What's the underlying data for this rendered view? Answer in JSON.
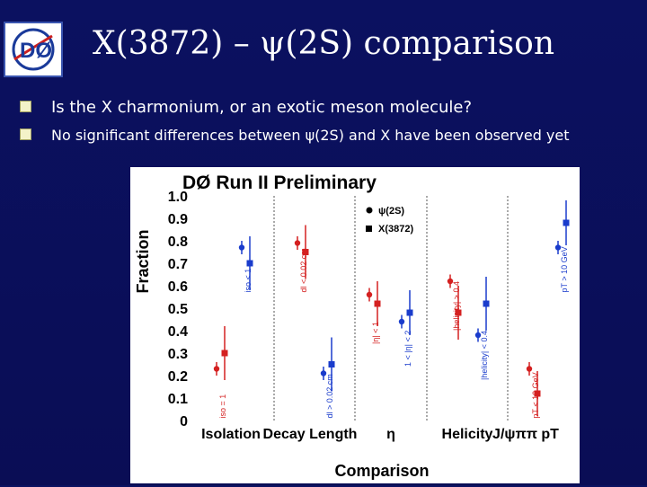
{
  "slide": {
    "title": "X(3872) – ψ(2S) comparison",
    "logo_text": "DØ",
    "bullets": [
      "Is the X charmonium, or an exotic meson molecule?",
      "No significant differences between ψ(2S) and X have been observed yet"
    ]
  },
  "chart_data": {
    "type": "scatter",
    "title": "DØ Run II Preliminary",
    "ylabel": "Fraction",
    "xlabel": "Comparison",
    "ylim": [
      0,
      1.0
    ],
    "yticks": [
      "1.0",
      "0.9",
      "0.8",
      "0.7",
      "0.6",
      "0.5",
      "0.4",
      "0.3",
      "0.2",
      "0.1",
      "0"
    ],
    "groups": [
      "Isolation",
      "Decay Length",
      "η",
      "Helicity",
      "J/ψππ pT"
    ],
    "legend": [
      "ψ(2S)",
      "X(3872)"
    ],
    "colors": {
      "Isolation": "#d42020",
      "Decay Length": "#d42020",
      "eta": "#d42020",
      "helicity": "#d42020",
      "pt": "#d42020",
      "blue": "#1a3ccc",
      "red": "#d42020"
    },
    "series": [
      {
        "name": "ψ(2S)",
        "points": [
          {
            "group": "Isolation",
            "cut": "iso = 1",
            "value": 0.23,
            "err": 0.03,
            "color": "red"
          },
          {
            "group": "Isolation",
            "cut": "iso < 1",
            "value": 0.77,
            "err": 0.03,
            "color": "blue"
          },
          {
            "group": "Decay Length",
            "cut": "dl < 0.02 cm",
            "value": 0.79,
            "err": 0.03,
            "color": "red"
          },
          {
            "group": "Decay Length",
            "cut": "dl > 0.02 cm",
            "value": 0.21,
            "err": 0.03,
            "color": "blue"
          },
          {
            "group": "η",
            "cut": "|η| < 1",
            "value": 0.56,
            "err": 0.03,
            "color": "red"
          },
          {
            "group": "η",
            "cut": "1 < |η| < 2",
            "value": 0.44,
            "err": 0.03,
            "color": "blue"
          },
          {
            "group": "Helicity",
            "cut": "|helicity| > 0.4",
            "value": 0.62,
            "err": 0.03,
            "color": "red"
          },
          {
            "group": "Helicity",
            "cut": "|helicity| < 0.4",
            "value": 0.38,
            "err": 0.03,
            "color": "blue"
          },
          {
            "group": "pT",
            "cut": "pT < 10 GeV",
            "value": 0.23,
            "err": 0.03,
            "color": "red"
          },
          {
            "group": "pT",
            "cut": "pT > 10 GeV",
            "value": 0.77,
            "err": 0.03,
            "color": "blue"
          }
        ]
      },
      {
        "name": "X(3872)",
        "points": [
          {
            "group": "Isolation",
            "cut": "iso = 1",
            "value": 0.3,
            "err": 0.12,
            "color": "red"
          },
          {
            "group": "Isolation",
            "cut": "iso < 1",
            "value": 0.7,
            "err": 0.12,
            "color": "blue"
          },
          {
            "group": "Decay Length",
            "cut": "dl < 0.02 cm",
            "value": 0.75,
            "err": 0.12,
            "color": "red"
          },
          {
            "group": "Decay Length",
            "cut": "dl > 0.02 cm",
            "value": 0.25,
            "err": 0.12,
            "color": "blue"
          },
          {
            "group": "η",
            "cut": "|η| < 1",
            "value": 0.52,
            "err": 0.1,
            "color": "red"
          },
          {
            "group": "η",
            "cut": "1 < |η| < 2",
            "value": 0.48,
            "err": 0.1,
            "color": "blue"
          },
          {
            "group": "Helicity",
            "cut": "|helicity| > 0.4",
            "value": 0.48,
            "err": 0.12,
            "color": "red"
          },
          {
            "group": "Helicity",
            "cut": "|helicity| < 0.4",
            "value": 0.52,
            "err": 0.12,
            "color": "blue"
          },
          {
            "group": "pT",
            "cut": "pT < 10 GeV",
            "value": 0.12,
            "err": 0.1,
            "color": "red"
          },
          {
            "group": "pT",
            "cut": "pT > 10 GeV",
            "value": 0.88,
            "err": 0.1,
            "color": "blue"
          }
        ]
      }
    ]
  }
}
